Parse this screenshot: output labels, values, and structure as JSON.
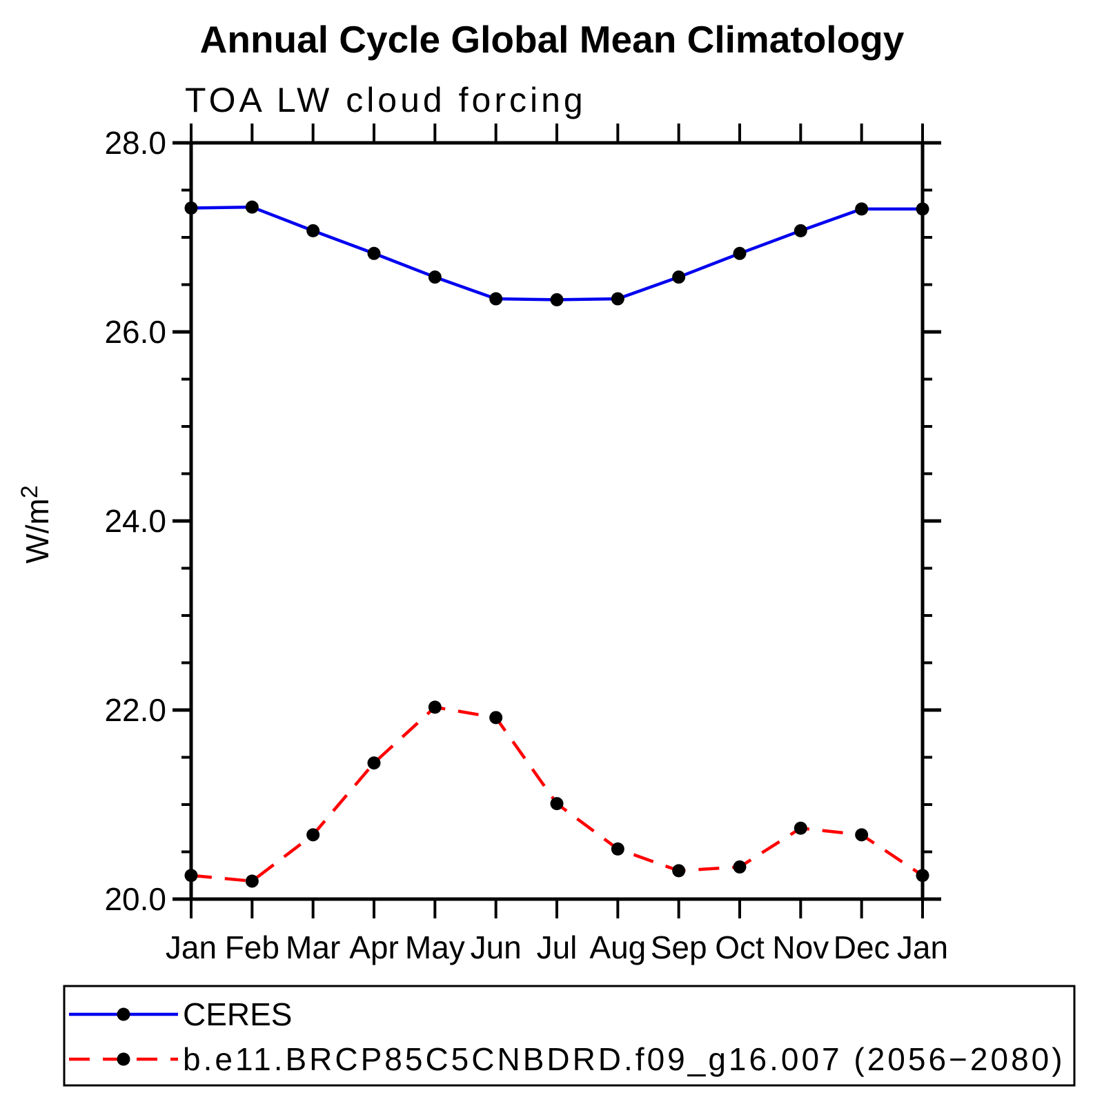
{
  "page": {
    "background_color": "#ffffff",
    "title": "Annual Cycle Global Mean Climatology"
  },
  "chart_data": {
    "type": "line",
    "title": "Annual Cycle Global Mean Climatology",
    "subtitle": "TOA LW cloud forcing",
    "ylabel": "W/m²",
    "ylabel_base": "W/m",
    "ylabel_sup": "2",
    "x_categories": [
      "Jan",
      "Feb",
      "Mar",
      "Apr",
      "May",
      "Jun",
      "Jul",
      "Aug",
      "Sep",
      "Oct",
      "Nov",
      "Dec",
      "Jan"
    ],
    "ylim": [
      20.0,
      28.0
    ],
    "y_major_ticks": [
      20.0,
      22.0,
      24.0,
      26.0,
      28.0
    ],
    "y_tick_labels": [
      "20.0",
      "22.0",
      "24.0",
      "26.0",
      "28.0"
    ],
    "y_minor_step": 0.5,
    "grid": false,
    "legend_position": "bottom",
    "axis_color": "#000000",
    "marker_color": "#000000",
    "series": [
      {
        "name": "CERES",
        "color": "#0000ee",
        "line_style": "solid",
        "marker": "filled-circle",
        "values": [
          27.31,
          27.32,
          27.07,
          26.83,
          26.58,
          26.35,
          26.34,
          26.35,
          26.58,
          26.83,
          27.07,
          27.3,
          27.3
        ]
      },
      {
        "name": "b.e11.BRCP85C5CNBDRD.f09_g16.007 (2056−2080)",
        "color": "#ff0000",
        "line_style": "dashed",
        "marker": "filled-circle",
        "values": [
          20.25,
          20.19,
          20.68,
          21.44,
          22.03,
          21.92,
          21.01,
          20.53,
          20.3,
          20.34,
          20.75,
          20.68,
          20.25
        ]
      }
    ]
  }
}
